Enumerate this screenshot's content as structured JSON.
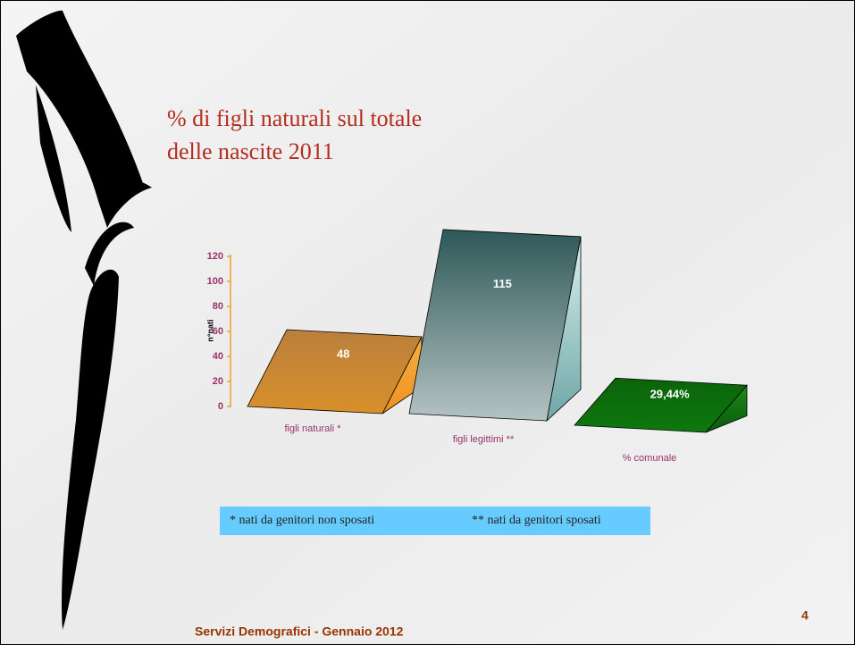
{
  "slide": {
    "title_lines": [
      "% di figli naturali sul totale",
      "delle nascite 2011"
    ],
    "notes": [
      "* nati da genitori non sposati",
      "** nati da genitori sposati"
    ],
    "footer": "Servizi Demografici - Gennaio 2012",
    "page_number": "4"
  },
  "chart_data": {
    "type": "wedge3d",
    "y_label": "n°nati",
    "categories": [
      "figli naturali *",
      "figli legittimi **",
      "% comunale"
    ],
    "values": [
      48,
      115,
      29.44
    ],
    "value_labels": [
      "48",
      "115",
      "29,44%"
    ],
    "colors": [
      "#c8842e",
      "#4f7a7a",
      "#0b6b0b"
    ],
    "ylim": [
      0,
      120
    ],
    "yticks": [
      0,
      20,
      40,
      60,
      80,
      100,
      120
    ]
  }
}
